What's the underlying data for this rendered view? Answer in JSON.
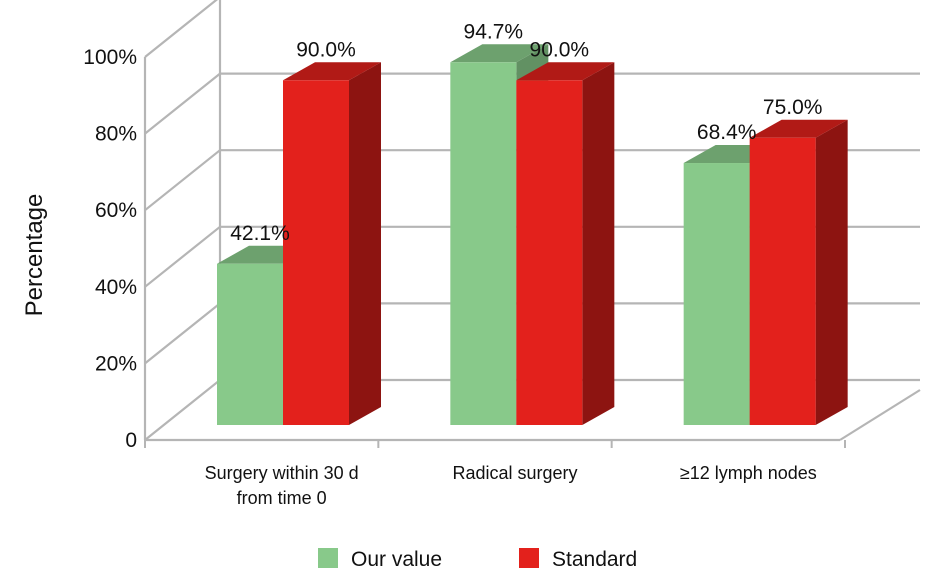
{
  "chart_data": {
    "type": "bar",
    "ylabel": "Percentage",
    "ylim": [
      0,
      100
    ],
    "yticks": [
      "0",
      "20%",
      "40%",
      "60%",
      "80%",
      "100%"
    ],
    "categories": [
      [
        "Surgery within 30 d",
        "from time 0"
      ],
      [
        "Radical surgery"
      ],
      [
        "≥12 lymph nodes"
      ]
    ],
    "series": [
      {
        "name": "Our value",
        "values": [
          42.1,
          94.7,
          68.4
        ],
        "labels": [
          "42.1%",
          "94.7%",
          "68.4%"
        ],
        "color": "#88c98a"
      },
      {
        "name": "Standard",
        "values": [
          90.0,
          90.0,
          75.0
        ],
        "labels": [
          "90.0%",
          "90.0%",
          "75.0%"
        ],
        "color": "#e3211c"
      }
    ],
    "legend": "bottom",
    "grid": true,
    "style": "3d"
  }
}
